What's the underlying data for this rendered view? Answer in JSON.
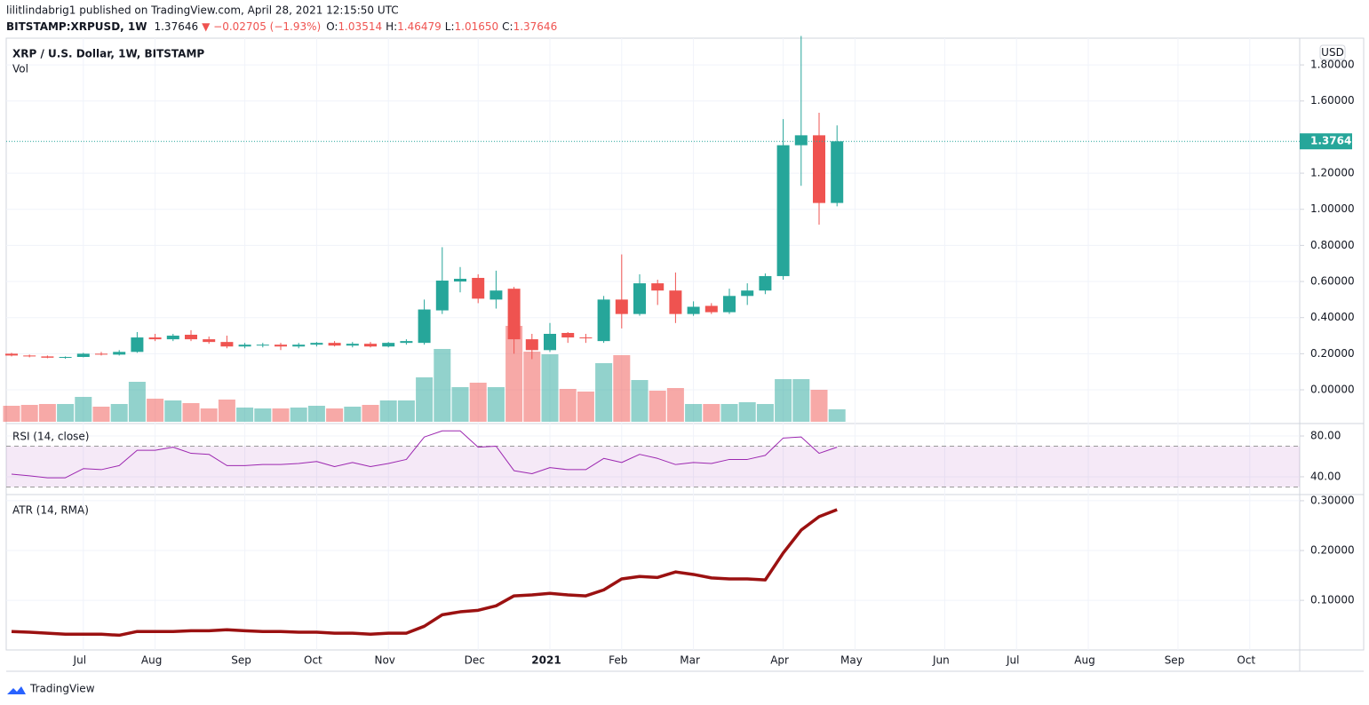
{
  "header": {
    "publisher": "lilitlindabrig1 published on TradingView.com, April 28, 2021 12:15:50 UTC",
    "symbol": "BITSTAMP:XRPUSD, 1W",
    "price": "1.37646",
    "change": "▼ −0.02705 (−1.93%)",
    "ohlc": [
      {
        "label": "O:",
        "value": "1.03514"
      },
      {
        "label": "H:",
        "value": "1.46479"
      },
      {
        "label": "L:",
        "value": "1.01650"
      },
      {
        "label": "C:",
        "value": "1.37646"
      }
    ]
  },
  "footer": {
    "brand": "TradingView"
  },
  "chart_data": [
    {
      "type": "candlestick",
      "title": "XRP / U.S. Dollar, 1W, BITSTAMP",
      "currency": "USD",
      "categories": [
        null,
        null,
        null,
        null,
        "Jul",
        null,
        null,
        null,
        "Aug",
        null,
        null,
        null,
        null,
        "Sep",
        null,
        null,
        null,
        "Oct",
        null,
        null,
        null,
        "Nov",
        null,
        null,
        null,
        null,
        "Dec",
        null,
        null,
        null,
        "2021",
        null,
        null,
        null,
        "Feb",
        null,
        null,
        null,
        "Mar",
        null,
        null,
        null,
        null,
        "Apr",
        null,
        null,
        null,
        "May",
        null,
        null,
        null,
        null,
        "Jun",
        null,
        null,
        null,
        "Jul",
        null,
        null,
        null,
        "Aug",
        null,
        null,
        null,
        null,
        "Sep",
        null,
        null,
        null,
        "Oct",
        null,
        null
      ],
      "open": [
        0.2,
        0.19,
        0.185,
        0.177,
        0.182,
        0.2,
        0.195,
        0.21,
        0.29,
        0.28,
        0.305,
        0.28,
        0.265,
        0.24,
        0.245,
        0.25,
        0.24,
        0.25,
        0.26,
        0.245,
        0.255,
        0.24,
        0.26,
        0.26,
        0.44,
        0.6,
        0.62,
        0.5,
        0.56,
        0.28,
        0.22,
        0.315,
        0.29,
        0.27,
        0.5,
        0.42,
        0.59,
        0.55,
        0.42,
        0.465,
        0.43,
        0.52,
        0.55,
        0.63,
        1.355,
        1.41,
        1.03514,
        null,
        null,
        null,
        null,
        null,
        null,
        null,
        null,
        null,
        null,
        null,
        null,
        null,
        null,
        null,
        null,
        null,
        null,
        null,
        null,
        null,
        null,
        null,
        null,
        null
      ],
      "high": [
        0.205,
        0.195,
        0.19,
        0.185,
        0.205,
        0.21,
        0.22,
        0.32,
        0.31,
        0.31,
        0.33,
        0.295,
        0.3,
        0.26,
        0.26,
        0.26,
        0.26,
        0.265,
        0.27,
        0.265,
        0.265,
        0.265,
        0.28,
        0.5,
        0.79,
        0.68,
        0.64,
        0.66,
        0.57,
        0.31,
        0.37,
        0.32,
        0.31,
        0.52,
        0.75,
        0.64,
        0.61,
        0.65,
        0.49,
        0.48,
        0.56,
        0.59,
        0.645,
        1.5,
        1.96,
        1.535,
        1.46479,
        null,
        null,
        null,
        null,
        null,
        null,
        null,
        null,
        null,
        null,
        null,
        null,
        null,
        null,
        null,
        null,
        null,
        null,
        null,
        null,
        null,
        null,
        null,
        null,
        null
      ],
      "low": [
        0.185,
        0.18,
        0.175,
        0.172,
        0.18,
        0.19,
        0.19,
        0.205,
        0.27,
        0.27,
        0.27,
        0.255,
        0.23,
        0.23,
        0.235,
        0.22,
        0.23,
        0.24,
        0.24,
        0.235,
        0.235,
        0.235,
        0.25,
        0.25,
        0.42,
        0.54,
        0.48,
        0.45,
        0.2,
        0.17,
        0.21,
        0.26,
        0.26,
        0.26,
        0.34,
        0.41,
        0.47,
        0.37,
        0.41,
        0.42,
        0.42,
        0.47,
        0.53,
        0.61,
        1.13,
        0.915,
        1.0165,
        null,
        null,
        null,
        null,
        null,
        null,
        null,
        null,
        null,
        null,
        null,
        null,
        null,
        null,
        null,
        null,
        null,
        null,
        null,
        null,
        null,
        null,
        null,
        null,
        null
      ],
      "close": [
        0.19,
        0.185,
        0.178,
        0.182,
        0.2,
        0.195,
        0.21,
        0.29,
        0.28,
        0.3,
        0.28,
        0.265,
        0.24,
        0.25,
        0.25,
        0.24,
        0.25,
        0.26,
        0.245,
        0.255,
        0.24,
        0.26,
        0.27,
        0.445,
        0.605,
        0.615,
        0.505,
        0.55,
        0.28,
        0.22,
        0.31,
        0.29,
        0.285,
        0.5,
        0.42,
        0.59,
        0.55,
        0.42,
        0.46,
        0.43,
        0.52,
        0.55,
        0.63,
        1.355,
        1.41,
        1.035,
        1.37646,
        null,
        null,
        null,
        null,
        null,
        null,
        null,
        null,
        null,
        null,
        null,
        null,
        null,
        null,
        null,
        null,
        null,
        null,
        null,
        null,
        null,
        null,
        null,
        null,
        null
      ],
      "volume": {
        "name": "Vol",
        "values": [
          18,
          19,
          20,
          20,
          28,
          17,
          20,
          45,
          26,
          24,
          21,
          15,
          25,
          16,
          15,
          15,
          16,
          18,
          15,
          17,
          19,
          24,
          24,
          50,
          82,
          39,
          44,
          39,
          108,
          79,
          76,
          37,
          34,
          66,
          75,
          47,
          35,
          38,
          20,
          20,
          20,
          22,
          20,
          48,
          48,
          36,
          14,
          null,
          null,
          null,
          null,
          null,
          null,
          null,
          null,
          null,
          null,
          null,
          null,
          null,
          null,
          null,
          null,
          null,
          null,
          null,
          null,
          null,
          null,
          null,
          null,
          null
        ]
      },
      "up_color": "#26a69a",
      "down_color": "#ef5350",
      "ylim": [
        -0.177,
        1.948
      ],
      "yticks": [
        {
          "value": 0,
          "label": "0.00000"
        },
        {
          "value": 0.2,
          "label": "0.20000"
        },
        {
          "value": 0.4,
          "label": "0.40000"
        },
        {
          "value": 0.6,
          "label": "0.60000"
        },
        {
          "value": 0.8,
          "label": "0.80000"
        },
        {
          "value": 1,
          "label": "1.00000"
        },
        {
          "value": 1.2,
          "label": "1.20000"
        },
        {
          "value": 1.6,
          "label": "1.60000"
        },
        {
          "value": 1.8,
          "label": "1.80000"
        }
      ],
      "last_price": {
        "value": 1.37646,
        "label": "1.37646"
      },
      "grid": true
    },
    {
      "type": "line",
      "title": "RSI (14, close)",
      "color": "#9c27b0",
      "values": [
        42.6,
        41,
        39,
        39,
        48,
        47,
        51,
        66,
        66,
        69,
        63,
        62,
        51,
        51,
        52,
        52,
        53,
        55,
        50,
        54,
        50,
        53,
        57,
        79,
        85,
        85,
        69,
        70,
        46,
        43,
        49,
        47,
        47,
        58,
        54,
        62,
        58,
        52,
        54,
        53,
        57,
        57,
        61,
        78,
        79,
        63,
        69,
        null,
        null,
        null,
        null,
        null,
        null,
        null,
        null,
        null,
        null,
        null,
        null,
        null,
        null,
        null,
        null,
        null,
        null,
        null,
        null,
        null,
        null,
        null,
        null,
        null
      ],
      "band": [
        30,
        70
      ],
      "ylim": [
        24.3,
        89.6
      ],
      "yticks": [
        {
          "value": 40,
          "label": "40.00"
        },
        {
          "value": 80,
          "label": "80.00"
        }
      ],
      "grid": true
    },
    {
      "type": "line",
      "title": "ATR (14, RMA)",
      "color": "#9b1111",
      "values": [
        0.0375,
        0.036,
        0.034,
        0.032,
        0.032,
        0.032,
        0.03,
        0.0375,
        0.0375,
        0.0375,
        0.039,
        0.039,
        0.041,
        0.039,
        0.0375,
        0.0375,
        0.036,
        0.036,
        0.034,
        0.034,
        0.032,
        0.034,
        0.034,
        0.048,
        0.071,
        0.077,
        0.08,
        0.089,
        0.109,
        0.111,
        0.114,
        0.111,
        0.109,
        0.121,
        0.143,
        0.148,
        0.146,
        0.157,
        0.152,
        0.145,
        0.143,
        0.143,
        0.141,
        0.195,
        0.241,
        0.268,
        0.282,
        null,
        null,
        null,
        null,
        null,
        null,
        null,
        null,
        null,
        null,
        null,
        null,
        null,
        null,
        null,
        null,
        null,
        null,
        null,
        null,
        null,
        null,
        null,
        null,
        null
      ],
      "ylim": [
        0.004,
        0.307
      ],
      "yticks": [
        {
          "value": 0.1,
          "label": "0.10000"
        },
        {
          "value": 0.2,
          "label": "0.20000"
        },
        {
          "value": 0.3,
          "label": "0.30000"
        }
      ],
      "grid": true
    }
  ]
}
